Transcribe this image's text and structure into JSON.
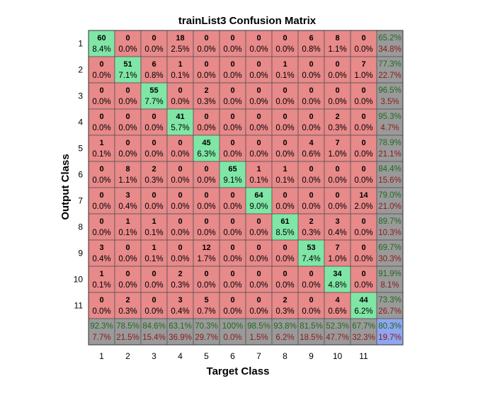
{
  "chart_data": {
    "type": "heatmap",
    "title": "trainList3 Confusion Matrix",
    "xlabel": "Target Class",
    "ylabel": "Output Class",
    "x_ticks": [
      "1",
      "2",
      "3",
      "4",
      "5",
      "6",
      "7",
      "8",
      "9",
      "10",
      "11"
    ],
    "y_ticks": [
      "1",
      "2",
      "3",
      "4",
      "5",
      "6",
      "7",
      "8",
      "9",
      "10",
      "11"
    ],
    "colors": {
      "diagonal": "#80e6a6",
      "off_diagonal": "#e8898a",
      "summary": "#9a9a9a",
      "overall": "#8fa6f0",
      "summary_good_text": "#1f6b1f",
      "summary_bad_text": "#8c1a1a"
    },
    "matrix_counts": [
      [
        60,
        0,
        0,
        18,
        0,
        0,
        0,
        0,
        6,
        8,
        0
      ],
      [
        0,
        51,
        6,
        1,
        0,
        0,
        0,
        1,
        0,
        0,
        7
      ],
      [
        0,
        0,
        55,
        0,
        2,
        0,
        0,
        0,
        0,
        0,
        0
      ],
      [
        0,
        0,
        0,
        41,
        0,
        0,
        0,
        0,
        0,
        2,
        0
      ],
      [
        1,
        0,
        0,
        0,
        45,
        0,
        0,
        0,
        4,
        7,
        0
      ],
      [
        0,
        8,
        2,
        0,
        0,
        65,
        1,
        1,
        0,
        0,
        0
      ],
      [
        0,
        3,
        0,
        0,
        0,
        0,
        64,
        0,
        0,
        0,
        14
      ],
      [
        0,
        1,
        1,
        0,
        0,
        0,
        0,
        61,
        2,
        3,
        0
      ],
      [
        3,
        0,
        1,
        0,
        12,
        0,
        0,
        0,
        53,
        7,
        0
      ],
      [
        1,
        0,
        0,
        2,
        0,
        0,
        0,
        0,
        0,
        34,
        0
      ],
      [
        0,
        2,
        0,
        3,
        5,
        0,
        0,
        2,
        0,
        4,
        44
      ]
    ],
    "matrix_percents": [
      [
        "8.4%",
        "0.0%",
        "0.0%",
        "2.5%",
        "0.0%",
        "0.0%",
        "0.0%",
        "0.0%",
        "0.8%",
        "1.1%",
        "0.0%"
      ],
      [
        "0.0%",
        "7.1%",
        "0.8%",
        "0.1%",
        "0.0%",
        "0.0%",
        "0.0%",
        "0.1%",
        "0.0%",
        "0.0%",
        "1.0%"
      ],
      [
        "0.0%",
        "0.0%",
        "7.7%",
        "0.0%",
        "0.3%",
        "0.0%",
        "0.0%",
        "0.0%",
        "0.0%",
        "0.0%",
        "0.0%"
      ],
      [
        "0.0%",
        "0.0%",
        "0.0%",
        "5.7%",
        "0.0%",
        "0.0%",
        "0.0%",
        "0.0%",
        "0.0%",
        "0.3%",
        "0.0%"
      ],
      [
        "0.1%",
        "0.0%",
        "0.0%",
        "0.0%",
        "6.3%",
        "0.0%",
        "0.0%",
        "0.0%",
        "0.6%",
        "1.0%",
        "0.0%"
      ],
      [
        "0.0%",
        "1.1%",
        "0.3%",
        "0.0%",
        "0.0%",
        "9.1%",
        "0.1%",
        "0.1%",
        "0.0%",
        "0.0%",
        "0.0%"
      ],
      [
        "0.0%",
        "0.4%",
        "0.0%",
        "0.0%",
        "0.0%",
        "0.0%",
        "9.0%",
        "0.0%",
        "0.0%",
        "0.0%",
        "2.0%"
      ],
      [
        "0.0%",
        "0.1%",
        "0.1%",
        "0.0%",
        "0.0%",
        "0.0%",
        "0.0%",
        "8.5%",
        "0.3%",
        "0.4%",
        "0.0%"
      ],
      [
        "0.4%",
        "0.0%",
        "0.1%",
        "0.0%",
        "1.7%",
        "0.0%",
        "0.0%",
        "0.0%",
        "7.4%",
        "1.0%",
        "0.0%"
      ],
      [
        "0.1%",
        "0.0%",
        "0.0%",
        "0.3%",
        "0.0%",
        "0.0%",
        "0.0%",
        "0.0%",
        "0.0%",
        "4.8%",
        "0.0%"
      ],
      [
        "0.0%",
        "0.3%",
        "0.0%",
        "0.4%",
        "0.7%",
        "0.0%",
        "0.0%",
        "0.3%",
        "0.0%",
        "0.6%",
        "6.2%"
      ]
    ],
    "row_summary": [
      [
        "65.2%",
        "34.8%"
      ],
      [
        "77.3%",
        "22.7%"
      ],
      [
        "96.5%",
        "3.5%"
      ],
      [
        "95.3%",
        "4.7%"
      ],
      [
        "78.9%",
        "21.1%"
      ],
      [
        "84.4%",
        "15.6%"
      ],
      [
        "79.0%",
        "21.0%"
      ],
      [
        "89.7%",
        "10.3%"
      ],
      [
        "69.7%",
        "30.3%"
      ],
      [
        "91.9%",
        "8.1%"
      ],
      [
        "73.3%",
        "26.7%"
      ]
    ],
    "col_summary": [
      [
        "92.3%",
        "7.7%"
      ],
      [
        "78.5%",
        "21.5%"
      ],
      [
        "84.6%",
        "15.4%"
      ],
      [
        "63.1%",
        "36.9%"
      ],
      [
        "70.3%",
        "29.7%"
      ],
      [
        "100%",
        "0.0%"
      ],
      [
        "98.5%",
        "1.5%"
      ],
      [
        "93.8%",
        "6.2%"
      ],
      [
        "81.5%",
        "18.5%"
      ],
      [
        "52.3%",
        "47.7%"
      ],
      [
        "67.7%",
        "32.3%"
      ]
    ],
    "overall": [
      "80.3%",
      "19.7%"
    ]
  }
}
